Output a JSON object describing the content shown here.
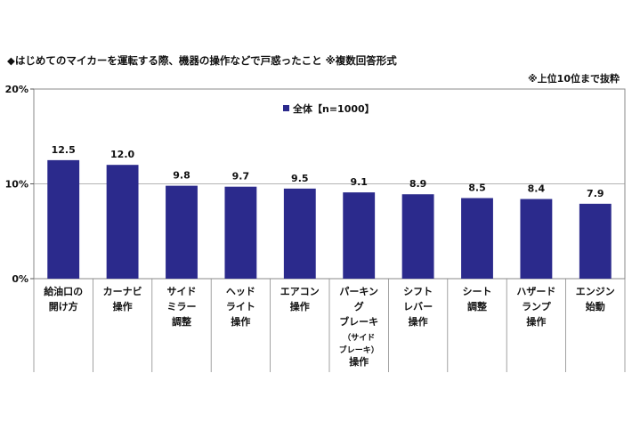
{
  "header": {
    "title": "◆はじめてのマイカーを運転する際、機器の操作などで戸惑ったこと ※複数回答形式",
    "note": "※上位10位まで抜粋"
  },
  "chart_data": {
    "type": "bar",
    "title": "◆はじめてのマイカーを運転する際、機器の操作などで戸惑ったこと ※複数回答形式",
    "categories": [
      [
        "給油口の",
        "開け方"
      ],
      [
        "カーナビ",
        "操作"
      ],
      [
        "サイド",
        "ミラー",
        "調整"
      ],
      [
        "ヘッド",
        "ライト",
        "操作"
      ],
      [
        "エアコン",
        "操作"
      ],
      [
        "パーキン",
        "グ",
        "ブレーキ",
        "（サイド",
        "ブレーキ）",
        "操作"
      ],
      [
        "シフト",
        "レバー",
        "操作"
      ],
      [
        "シート",
        "調整"
      ],
      [
        "ハザード",
        "ランプ",
        "操作"
      ],
      [
        "エンジン",
        "始動"
      ]
    ],
    "series": [
      {
        "name": "全体【n=1000】",
        "values": [
          12.5,
          12.0,
          9.8,
          9.7,
          9.5,
          9.1,
          8.9,
          8.5,
          8.4,
          7.9
        ]
      }
    ],
    "value_labels": [
      "12.5",
      "12.0",
      "9.8",
      "9.7",
      "9.5",
      "9.1",
      "8.9",
      "8.5",
      "8.4",
      "7.9"
    ],
    "ytick_labels": [
      "0%",
      "10%",
      "20%"
    ],
    "yticks": [
      0,
      10,
      20
    ],
    "ylim": [
      0,
      20
    ],
    "grid": true,
    "legend_position": "top-center",
    "bar_color": "#2b2a8c"
  }
}
